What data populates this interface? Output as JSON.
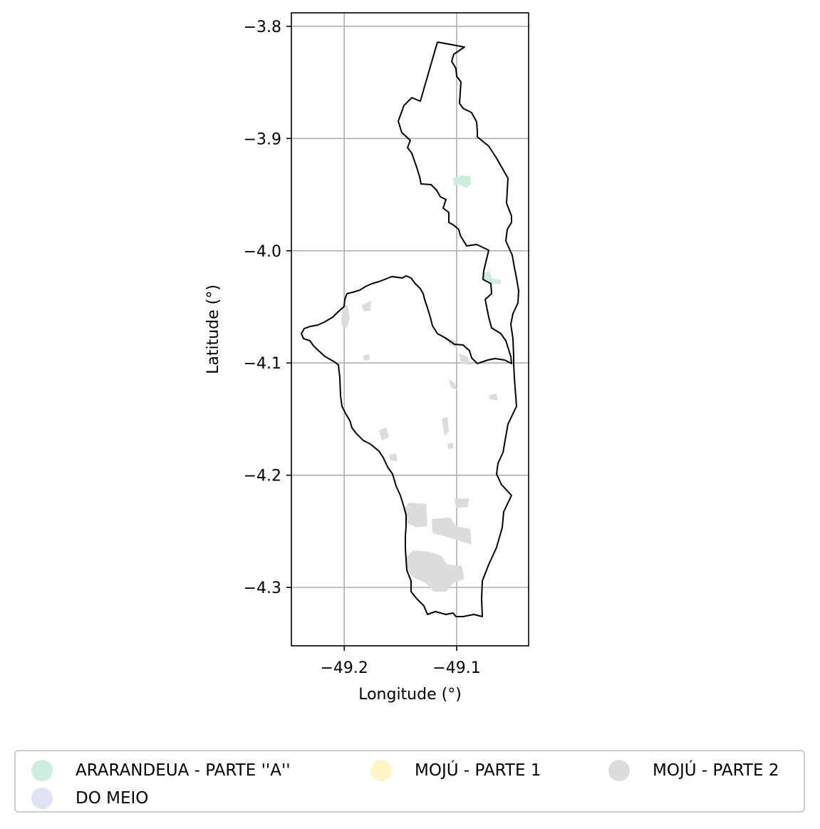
{
  "map": {
    "xlabel": "Longitude (°)",
    "ylabel": "Latitude (°)",
    "xlim": [
      -49.247,
      -49.036
    ],
    "ylim": [
      -4.352,
      -3.788
    ],
    "x_ticks": [
      {
        "value": -49.2,
        "label": "−49.2"
      },
      {
        "value": -49.1,
        "label": "−49.1"
      }
    ],
    "y_ticks": [
      {
        "value": -3.8,
        "label": "−3.8"
      },
      {
        "value": -3.9,
        "label": "−3.9"
      },
      {
        "value": -4.0,
        "label": "−4.0"
      },
      {
        "value": -4.1,
        "label": "−4.1"
      },
      {
        "value": -4.2,
        "label": "−4.2"
      },
      {
        "value": -4.3,
        "label": "−4.3"
      }
    ],
    "grid": true,
    "outline_color": "#000000",
    "grid_color": "#b0b0b0"
  },
  "legend": {
    "placement": "bottom-center",
    "items": [
      {
        "label": "ARARANDEUA - PARTE ''A''",
        "color": "#cdeedd"
      },
      {
        "label": "MOJÚ - PARTE 1",
        "color": "#fff5c8"
      },
      {
        "label": "MOJÚ - PARTE 2",
        "color": "#dcdcdc"
      },
      {
        "label": "DO MEIO",
        "color": "#dde3f3"
      }
    ]
  }
}
